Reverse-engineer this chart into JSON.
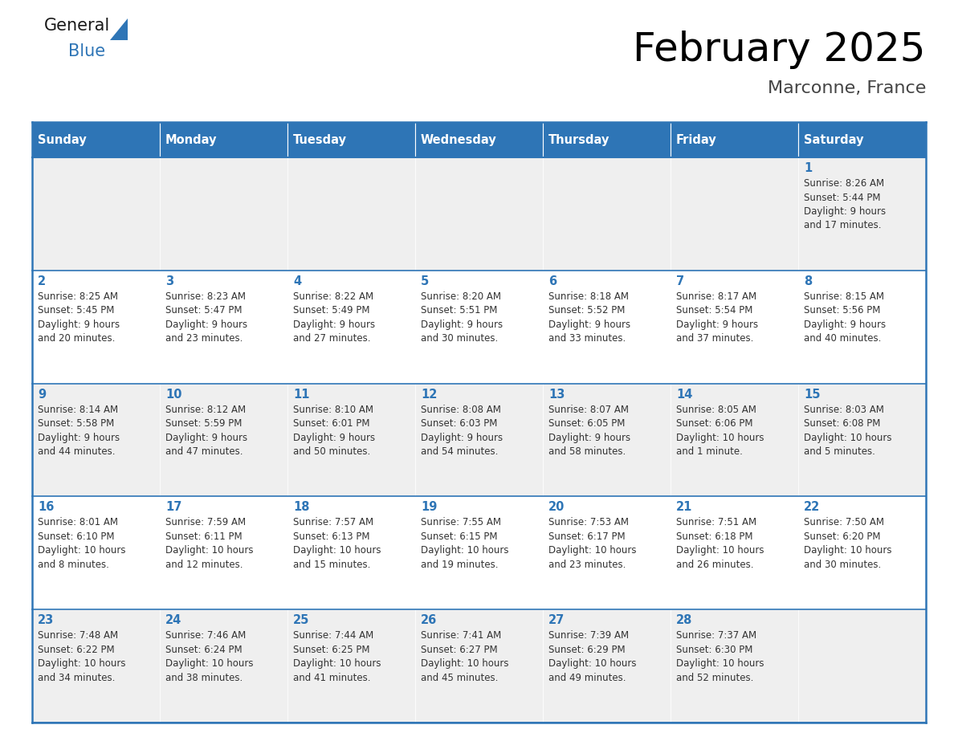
{
  "title": "February 2025",
  "subtitle": "Marconne, France",
  "days_of_week": [
    "Sunday",
    "Monday",
    "Tuesday",
    "Wednesday",
    "Thursday",
    "Friday",
    "Saturday"
  ],
  "header_bg": "#2E75B6",
  "header_text_color": "#FFFFFF",
  "cell_bg_even": "#EFEFEF",
  "cell_bg_odd": "#FFFFFF",
  "day_number_color": "#2E75B6",
  "text_color": "#333333",
  "border_color": "#2E75B6",
  "calendar_data": [
    [
      null,
      null,
      null,
      null,
      null,
      null,
      1
    ],
    [
      2,
      3,
      4,
      5,
      6,
      7,
      8
    ],
    [
      9,
      10,
      11,
      12,
      13,
      14,
      15
    ],
    [
      16,
      17,
      18,
      19,
      20,
      21,
      22
    ],
    [
      23,
      24,
      25,
      26,
      27,
      28,
      null
    ]
  ],
  "cell_info": {
    "1": {
      "sunrise": "8:26 AM",
      "sunset": "5:44 PM",
      "daylight": "9 hours",
      "daylight2": "and 17 minutes."
    },
    "2": {
      "sunrise": "8:25 AM",
      "sunset": "5:45 PM",
      "daylight": "9 hours",
      "daylight2": "and 20 minutes."
    },
    "3": {
      "sunrise": "8:23 AM",
      "sunset": "5:47 PM",
      "daylight": "9 hours",
      "daylight2": "and 23 minutes."
    },
    "4": {
      "sunrise": "8:22 AM",
      "sunset": "5:49 PM",
      "daylight": "9 hours",
      "daylight2": "and 27 minutes."
    },
    "5": {
      "sunrise": "8:20 AM",
      "sunset": "5:51 PM",
      "daylight": "9 hours",
      "daylight2": "and 30 minutes."
    },
    "6": {
      "sunrise": "8:18 AM",
      "sunset": "5:52 PM",
      "daylight": "9 hours",
      "daylight2": "and 33 minutes."
    },
    "7": {
      "sunrise": "8:17 AM",
      "sunset": "5:54 PM",
      "daylight": "9 hours",
      "daylight2": "and 37 minutes."
    },
    "8": {
      "sunrise": "8:15 AM",
      "sunset": "5:56 PM",
      "daylight": "9 hours",
      "daylight2": "and 40 minutes."
    },
    "9": {
      "sunrise": "8:14 AM",
      "sunset": "5:58 PM",
      "daylight": "9 hours",
      "daylight2": "and 44 minutes."
    },
    "10": {
      "sunrise": "8:12 AM",
      "sunset": "5:59 PM",
      "daylight": "9 hours",
      "daylight2": "and 47 minutes."
    },
    "11": {
      "sunrise": "8:10 AM",
      "sunset": "6:01 PM",
      "daylight": "9 hours",
      "daylight2": "and 50 minutes."
    },
    "12": {
      "sunrise": "8:08 AM",
      "sunset": "6:03 PM",
      "daylight": "9 hours",
      "daylight2": "and 54 minutes."
    },
    "13": {
      "sunrise": "8:07 AM",
      "sunset": "6:05 PM",
      "daylight": "9 hours",
      "daylight2": "and 58 minutes."
    },
    "14": {
      "sunrise": "8:05 AM",
      "sunset": "6:06 PM",
      "daylight": "10 hours",
      "daylight2": "and 1 minute."
    },
    "15": {
      "sunrise": "8:03 AM",
      "sunset": "6:08 PM",
      "daylight": "10 hours",
      "daylight2": "and 5 minutes."
    },
    "16": {
      "sunrise": "8:01 AM",
      "sunset": "6:10 PM",
      "daylight": "10 hours",
      "daylight2": "and 8 minutes."
    },
    "17": {
      "sunrise": "7:59 AM",
      "sunset": "6:11 PM",
      "daylight": "10 hours",
      "daylight2": "and 12 minutes."
    },
    "18": {
      "sunrise": "7:57 AM",
      "sunset": "6:13 PM",
      "daylight": "10 hours",
      "daylight2": "and 15 minutes."
    },
    "19": {
      "sunrise": "7:55 AM",
      "sunset": "6:15 PM",
      "daylight": "10 hours",
      "daylight2": "and 19 minutes."
    },
    "20": {
      "sunrise": "7:53 AM",
      "sunset": "6:17 PM",
      "daylight": "10 hours",
      "daylight2": "and 23 minutes."
    },
    "21": {
      "sunrise": "7:51 AM",
      "sunset": "6:18 PM",
      "daylight": "10 hours",
      "daylight2": "and 26 minutes."
    },
    "22": {
      "sunrise": "7:50 AM",
      "sunset": "6:20 PM",
      "daylight": "10 hours",
      "daylight2": "and 30 minutes."
    },
    "23": {
      "sunrise": "7:48 AM",
      "sunset": "6:22 PM",
      "daylight": "10 hours",
      "daylight2": "and 34 minutes."
    },
    "24": {
      "sunrise": "7:46 AM",
      "sunset": "6:24 PM",
      "daylight": "10 hours",
      "daylight2": "and 38 minutes."
    },
    "25": {
      "sunrise": "7:44 AM",
      "sunset": "6:25 PM",
      "daylight": "10 hours",
      "daylight2": "and 41 minutes."
    },
    "26": {
      "sunrise": "7:41 AM",
      "sunset": "6:27 PM",
      "daylight": "10 hours",
      "daylight2": "and 45 minutes."
    },
    "27": {
      "sunrise": "7:39 AM",
      "sunset": "6:29 PM",
      "daylight": "10 hours",
      "daylight2": "and 49 minutes."
    },
    "28": {
      "sunrise": "7:37 AM",
      "sunset": "6:30 PM",
      "daylight": "10 hours",
      "daylight2": "and 52 minutes."
    }
  },
  "fig_width": 11.88,
  "fig_height": 9.18,
  "dpi": 100
}
